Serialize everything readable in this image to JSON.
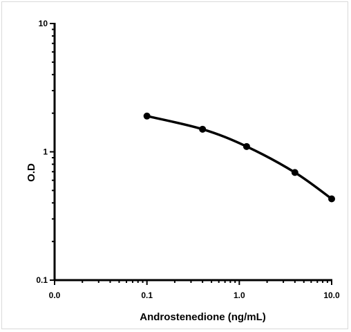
{
  "chart_data": {
    "type": "line",
    "title": "",
    "xlabel": "Androstenedione (ng/mL)",
    "ylabel": "O.D",
    "x_scale": "log",
    "y_scale": "log",
    "xlim": [
      0.01,
      10.0
    ],
    "ylim": [
      0.1,
      10
    ],
    "x_ticks": [
      {
        "value": 0.01,
        "label": "0.0"
      },
      {
        "value": 0.1,
        "label": "0.1"
      },
      {
        "value": 1.0,
        "label": "1.0"
      },
      {
        "value": 10.0,
        "label": "10.0"
      }
    ],
    "y_ticks": [
      {
        "value": 0.1,
        "label": "0.1"
      },
      {
        "value": 1,
        "label": "1"
      },
      {
        "value": 10,
        "label": "10"
      }
    ],
    "grid": false,
    "legend": "none",
    "series": [
      {
        "color": "#000000",
        "points": [
          {
            "x": 0.1,
            "y": 1.9
          },
          {
            "x": 0.4,
            "y": 1.5
          },
          {
            "x": 1.2,
            "y": 1.1
          },
          {
            "x": 4.0,
            "y": 0.69
          },
          {
            "x": 10.0,
            "y": 0.43
          }
        ]
      }
    ]
  }
}
